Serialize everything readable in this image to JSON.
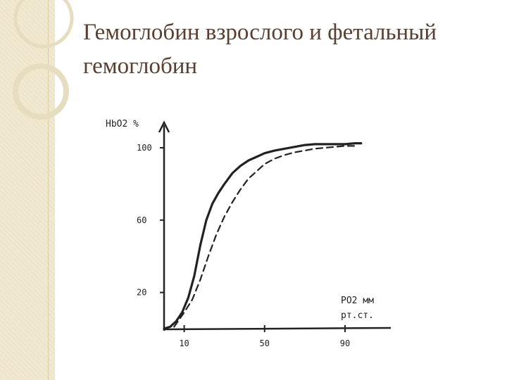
{
  "slide": {
    "title_line1": "Гемоглобин взрослого и фетальный",
    "title_line2": "гемоглобин"
  },
  "chart_data": {
    "type": "line",
    "title": "",
    "ylabel": "HbO2 %",
    "xlabel_line1": "PO2 мм",
    "xlabel_line2": "рт.ст.",
    "y_ticks": [
      100,
      60,
      20
    ],
    "x_ticks": [
      10,
      50,
      90
    ],
    "xlim": [
      0,
      112
    ],
    "ylim": [
      0,
      110
    ],
    "grid": false,
    "series": [
      {
        "style": "solid",
        "x": [
          0,
          3,
          6,
          9,
          12,
          15,
          18,
          21,
          24,
          27,
          30,
          34,
          38,
          42,
          46,
          50,
          55,
          60,
          65,
          70,
          75,
          80,
          85,
          90,
          95,
          98
        ],
        "y": [
          0,
          1,
          4,
          9,
          17,
          29,
          46,
          60,
          69,
          75,
          80,
          86,
          90,
          93,
          95,
          97,
          98.5,
          99.5,
          100.5,
          101.5,
          102,
          102,
          102,
          102,
          102.5,
          102.5
        ]
      },
      {
        "style": "dashed",
        "x": [
          5,
          10,
          14,
          18,
          22,
          26,
          30,
          34,
          38,
          42,
          46,
          50,
          55,
          60,
          65,
          70,
          75,
          80,
          85,
          90,
          95
        ],
        "y": [
          1,
          9,
          16,
          27,
          40,
          52,
          62,
          70,
          77,
          83,
          87,
          91,
          94,
          96,
          97.5,
          98.5,
          99.5,
          100,
          100.5,
          101,
          101
        ]
      }
    ]
  },
  "colors": {
    "title": "#5a3f31",
    "sidebar": "#f1e9cf",
    "ink": "#222222"
  }
}
